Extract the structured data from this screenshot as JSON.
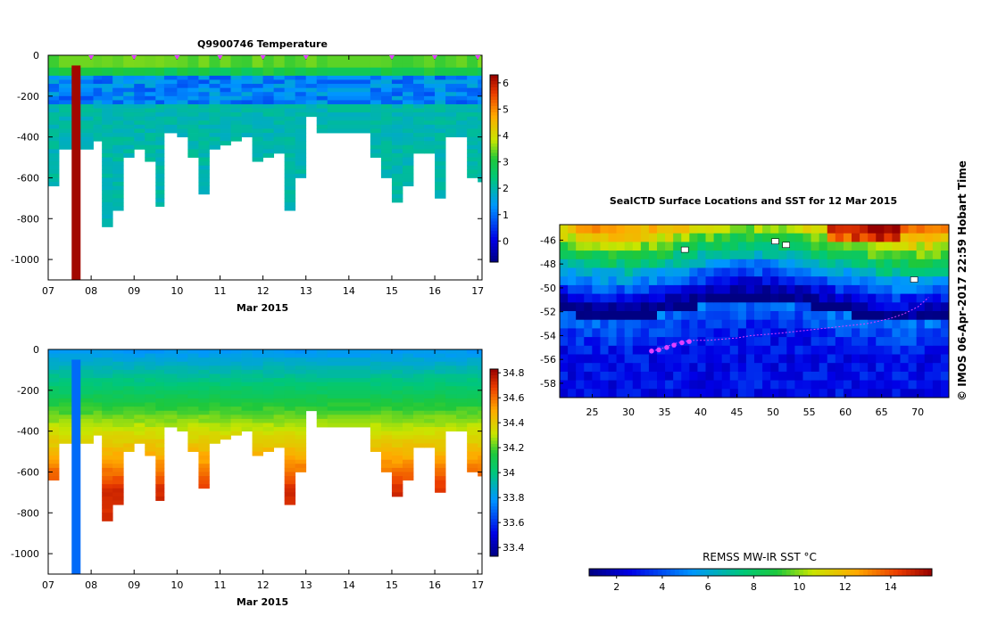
{
  "chart_data": [
    {
      "id": "temperature",
      "type": "heatmap",
      "title": "Q9900746  Temperature",
      "xlabel": "Mar 2015",
      "x_tick_labels": [
        "07",
        "08",
        "09",
        "10",
        "11",
        "12",
        "13",
        "14",
        "15",
        "16",
        "17"
      ],
      "x_ticks": [
        7,
        8,
        9,
        10,
        11,
        12,
        13,
        14,
        15,
        16,
        17
      ],
      "xlim": [
        7,
        17.1
      ],
      "y_tick_labels": [
        "0",
        "-200",
        "-400",
        "-600",
        "-800",
        "-1000"
      ],
      "y_ticks": [
        0,
        -200,
        -400,
        -600,
        -800,
        -1000
      ],
      "ylim": [
        -1100,
        0
      ],
      "colorbar": {
        "min": -0.8,
        "max": 6.3,
        "tick_labels": [
          "0",
          "1",
          "2",
          "3",
          "4",
          "5",
          "6"
        ],
        "ticks": [
          0,
          1,
          2,
          3,
          4,
          5,
          6
        ]
      },
      "profile_markers_x": [
        8,
        9,
        10,
        11,
        12,
        13,
        15,
        16,
        17
      ],
      "anomaly_profile": {
        "x": 7.65,
        "depth_top": -50,
        "depth_bottom": -1100,
        "value": 6.2
      },
      "profiles": [
        {
          "x": 7.0,
          "depth": 640
        },
        {
          "x": 7.25,
          "depth": 460
        },
        {
          "x": 8.05,
          "depth": 420
        },
        {
          "x": 8.25,
          "depth": 840
        },
        {
          "x": 8.5,
          "depth": 760
        },
        {
          "x": 8.75,
          "depth": 500
        },
        {
          "x": 9.0,
          "depth": 460
        },
        {
          "x": 9.25,
          "depth": 520
        },
        {
          "x": 9.5,
          "depth": 730
        },
        {
          "x": 9.7,
          "depth": 380
        },
        {
          "x": 10.0,
          "depth": 400
        },
        {
          "x": 10.25,
          "depth": 500
        },
        {
          "x": 10.5,
          "depth": 680
        },
        {
          "x": 10.75,
          "depth": 460
        },
        {
          "x": 11.0,
          "depth": 440
        },
        {
          "x": 11.25,
          "depth": 420
        },
        {
          "x": 11.5,
          "depth": 400
        },
        {
          "x": 11.75,
          "depth": 520
        },
        {
          "x": 12.0,
          "depth": 500
        },
        {
          "x": 12.25,
          "depth": 480
        },
        {
          "x": 12.5,
          "depth": 750
        },
        {
          "x": 12.75,
          "depth": 600
        },
        {
          "x": 13.0,
          "depth": 300
        },
        {
          "x": 13.25,
          "depth": 380
        },
        {
          "x": 13.5,
          "depth": 380
        },
        {
          "x": 14.5,
          "depth": 500
        },
        {
          "x": 14.75,
          "depth": 590
        },
        {
          "x": 15.0,
          "depth": 720
        },
        {
          "x": 15.25,
          "depth": 640
        },
        {
          "x": 15.5,
          "depth": 480
        },
        {
          "x": 15.75,
          "depth": 480
        },
        {
          "x": 16.0,
          "depth": 700
        },
        {
          "x": 16.25,
          "depth": 400
        },
        {
          "x": 16.5,
          "depth": 400
        },
        {
          "x": 16.75,
          "depth": 600
        },
        {
          "x": 17.0,
          "depth": 610
        }
      ]
    },
    {
      "id": "salinity",
      "type": "heatmap",
      "title": "",
      "xlabel": "Mar 2015",
      "x_tick_labels": [
        "07",
        "08",
        "09",
        "10",
        "11",
        "12",
        "13",
        "14",
        "15",
        "16",
        "17"
      ],
      "x_ticks": [
        7,
        8,
        9,
        10,
        11,
        12,
        13,
        14,
        15,
        16,
        17
      ],
      "xlim": [
        7,
        17.1
      ],
      "y_tick_labels": [
        "0",
        "-200",
        "-400",
        "-600",
        "-800",
        "-1000"
      ],
      "y_ticks": [
        0,
        -200,
        -400,
        -600,
        -800,
        -1000
      ],
      "ylim": [
        -1100,
        0
      ],
      "colorbar": {
        "min": 33.33,
        "max": 34.83,
        "tick_labels": [
          "33.4",
          "33.6",
          "33.8",
          "34",
          "34.2",
          "34.4",
          "34.6",
          "34.8"
        ],
        "ticks": [
          33.4,
          33.6,
          33.8,
          34.0,
          34.2,
          34.4,
          34.6,
          34.8
        ]
      },
      "anomaly_profile": {
        "x": 7.65,
        "depth_top": -50,
        "depth_bottom": -1100,
        "value": 33.7
      }
    },
    {
      "id": "sst_map",
      "type": "heatmap",
      "title": "SealCTD Surface Locations and SST for 12 Mar 2015",
      "x_tick_labels": [
        "25",
        "30",
        "35",
        "40",
        "45",
        "50",
        "55",
        "60",
        "65",
        "70"
      ],
      "x_ticks": [
        25,
        30,
        35,
        40,
        45,
        50,
        55,
        60,
        65,
        70
      ],
      "xlim": [
        20.5,
        74.3
      ],
      "y_tick_labels": [
        "-46",
        "-48",
        "-50",
        "-52",
        "-54",
        "-56",
        "-58"
      ],
      "y_ticks": [
        -46,
        -48,
        -50,
        -52,
        -54,
        -56,
        -58
      ],
      "ylim": [
        -59.2,
        -44.7
      ],
      "colorbar": {
        "label": "REMSS MW-IR SST °C",
        "min": 0.8,
        "max": 15.8,
        "tick_labels": [
          "2",
          "4",
          "6",
          "8",
          "10",
          "12",
          "14"
        ],
        "ticks": [
          2,
          4,
          6,
          8,
          10,
          12,
          14
        ]
      },
      "track": [
        {
          "lon": 33.2,
          "lat": -55.3
        },
        {
          "lon": 34.0,
          "lat": -55.2
        },
        {
          "lon": 35.0,
          "lat": -55.0
        },
        {
          "lon": 36.2,
          "lat": -54.7
        },
        {
          "lon": 37.5,
          "lat": -54.5
        },
        {
          "lon": 39.0,
          "lat": -54.4
        },
        {
          "lon": 41.0,
          "lat": -54.4
        },
        {
          "lon": 43.0,
          "lat": -54.3
        },
        {
          "lon": 45.0,
          "lat": -54.2
        },
        {
          "lon": 47.0,
          "lat": -54.0
        },
        {
          "lon": 49.0,
          "lat": -53.9
        },
        {
          "lon": 51.0,
          "lat": -53.8
        },
        {
          "lon": 54.0,
          "lat": -53.6
        },
        {
          "lon": 57.0,
          "lat": -53.4
        },
        {
          "lon": 60.0,
          "lat": -53.2
        },
        {
          "lon": 63.0,
          "lat": -53.0
        },
        {
          "lon": 66.0,
          "lat": -52.6
        },
        {
          "lon": 68.0,
          "lat": -52.2
        },
        {
          "lon": 70.0,
          "lat": -51.6
        },
        {
          "lon": 71.5,
          "lat": -50.8
        }
      ],
      "track_markers": [
        {
          "lon": 33.2,
          "lat": -55.3
        },
        {
          "lon": 34.2,
          "lat": -55.2
        },
        {
          "lon": 35.3,
          "lat": -55.0
        },
        {
          "lon": 36.3,
          "lat": -54.8
        },
        {
          "lon": 37.4,
          "lat": -54.6
        },
        {
          "lon": 38.4,
          "lat": -54.5
        }
      ],
      "islands": [
        {
          "lon": 37.8,
          "lat": -46.8
        },
        {
          "lon": 50.3,
          "lat": -46.1
        },
        {
          "lon": 51.8,
          "lat": -46.4
        },
        {
          "lon": 69.5,
          "lat": -49.3
        }
      ]
    }
  ],
  "watermark": "© IMOS 06-Apr-2017 22:59 Hobart Time"
}
